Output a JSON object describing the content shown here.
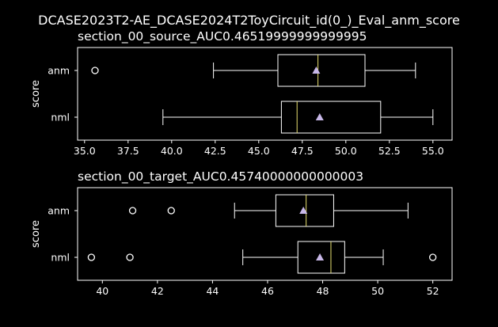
{
  "suptitle": "DCASE2023T2-AE_DCASE2024T2ToyCircuit_id(0_)_Eval_anm_score",
  "colors": {
    "background": "#000000",
    "foreground": "#ffffff",
    "median": "#e8e070",
    "mean_marker": "#c8b8e8"
  },
  "chart_data": [
    {
      "type": "box",
      "title": "section_00_source_AUC0.46519999999999995",
      "ylabel": "score",
      "xlim": [
        34.6,
        56.1
      ],
      "xticks": [
        35.0,
        37.5,
        40.0,
        42.5,
        45.0,
        47.5,
        50.0,
        52.5,
        55.0
      ],
      "xtick_labels": [
        "35.0",
        "37.5",
        "40.0",
        "42.5",
        "45.0",
        "47.5",
        "50.0",
        "52.5",
        "55.0"
      ],
      "categories": [
        "anm",
        "nml"
      ],
      "boxes": [
        {
          "label": "anm",
          "whisker_low": 42.4,
          "q1": 46.1,
          "median": 48.4,
          "q3": 51.1,
          "whisker_high": 54.0,
          "mean": 48.3,
          "outliers": [
            35.6
          ]
        },
        {
          "label": "nml",
          "whisker_low": 39.5,
          "q1": 46.3,
          "median": 47.2,
          "q3": 52.0,
          "whisker_high": 55.0,
          "mean": 48.5,
          "outliers": []
        }
      ]
    },
    {
      "type": "box",
      "title": "section_00_target_AUC0.45740000000000003",
      "ylabel": "score",
      "xlim": [
        39.1,
        52.7
      ],
      "xticks": [
        40,
        42,
        44,
        46,
        48,
        50,
        52
      ],
      "xtick_labels": [
        "40",
        "42",
        "44",
        "46",
        "48",
        "50",
        "52"
      ],
      "categories": [
        "anm",
        "nml"
      ],
      "boxes": [
        {
          "label": "anm",
          "whisker_low": 44.8,
          "q1": 46.3,
          "median": 47.4,
          "q3": 48.4,
          "whisker_high": 51.1,
          "mean": 47.3,
          "outliers": [
            41.1,
            42.5
          ]
        },
        {
          "label": "nml",
          "whisker_low": 45.1,
          "q1": 47.1,
          "median": 48.3,
          "q3": 48.8,
          "whisker_high": 50.2,
          "mean": 47.9,
          "outliers": [
            39.6,
            41.0,
            52.0
          ]
        }
      ]
    }
  ]
}
